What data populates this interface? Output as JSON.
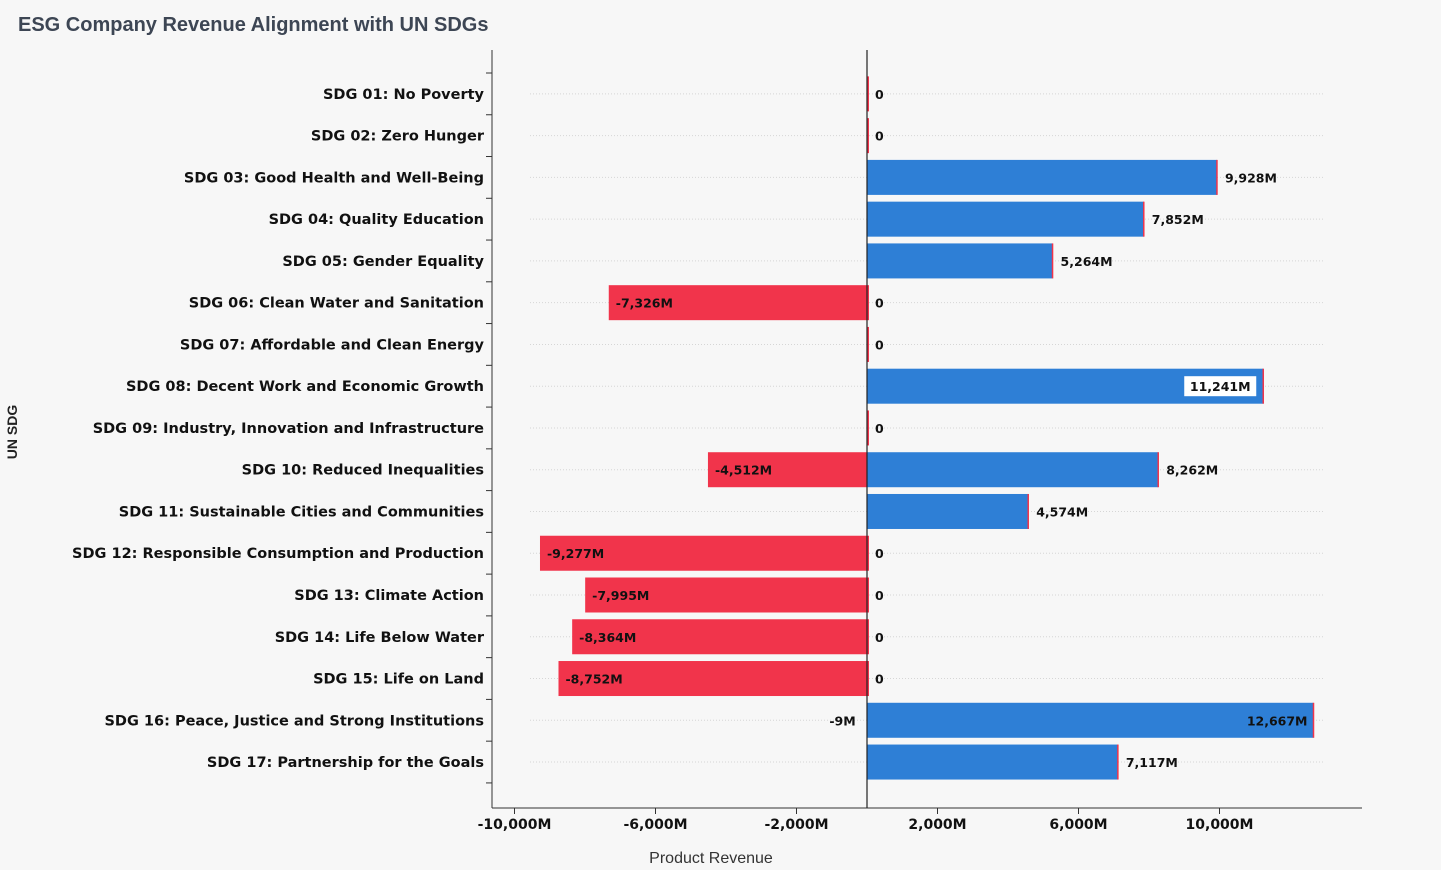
{
  "chart_data": {
    "type": "bar",
    "orientation": "horizontal",
    "title": "ESG Company Revenue Alignment with UN SDGs",
    "xlabel": "Product Revenue",
    "ylabel": "UN SDG",
    "xlim": [
      -10600,
      13400
    ],
    "xticks": [
      -10000,
      -6000,
      -2000,
      2000,
      6000,
      10000
    ],
    "xtick_labels": [
      "-10,000M",
      "-6,000M",
      "-2,000M",
      "2,000M",
      "6,000M",
      "10,000M"
    ],
    "categories": [
      "SDG 01: No Poverty",
      "SDG 02: Zero Hunger",
      "SDG 03: Good Health and Well-Being",
      "SDG 04: Quality Education",
      "SDG 05: Gender Equality",
      "SDG 06: Clean Water and Sanitation",
      "SDG 07: Affordable and Clean Energy",
      "SDG 08: Decent Work and Economic Growth",
      "SDG 09: Industry, Innovation and Infrastructure",
      "SDG 10: Reduced Inequalities",
      "SDG 11: Sustainable Cities and Communities",
      "SDG 12: Responsible Consumption and Production",
      "SDG 13: Climate Action",
      "SDG 14: Life Below Water",
      "SDG 15: Life on Land",
      "SDG 16: Peace, Justice and Strong Institutions",
      "SDG 17: Partnership for the Goals"
    ],
    "series": [
      {
        "color": "#2e7fd6",
        "values": [
          0,
          0,
          9928,
          7852,
          5264,
          0,
          0,
          11241,
          0,
          8262,
          4574,
          0,
          0,
          0,
          0,
          12667,
          7117
        ],
        "labels": [
          "0",
          "0",
          "9,928M",
          "7,852M",
          "5,264M",
          "0",
          "0",
          "11,241M",
          "0",
          "8,262M",
          "4,574M",
          "0",
          "0",
          "0",
          "0",
          "12,667M",
          "7,117M"
        ]
      },
      {
        "color": "#f1344b",
        "values": [
          0,
          0,
          0,
          0,
          0,
          -7326,
          0,
          0,
          0,
          -4512,
          0,
          -9277,
          -7995,
          -8364,
          -8752,
          -9,
          0
        ],
        "labels": [
          "",
          "",
          "",
          "",
          "",
          "-7,326M",
          "",
          "",
          "",
          "-4,512M",
          "",
          "-9,277M",
          "-7,995M",
          "-8,364M",
          "-8,752M",
          "-9M",
          ""
        ]
      }
    ],
    "grid": "horizontal-dotted",
    "legend": "none"
  }
}
